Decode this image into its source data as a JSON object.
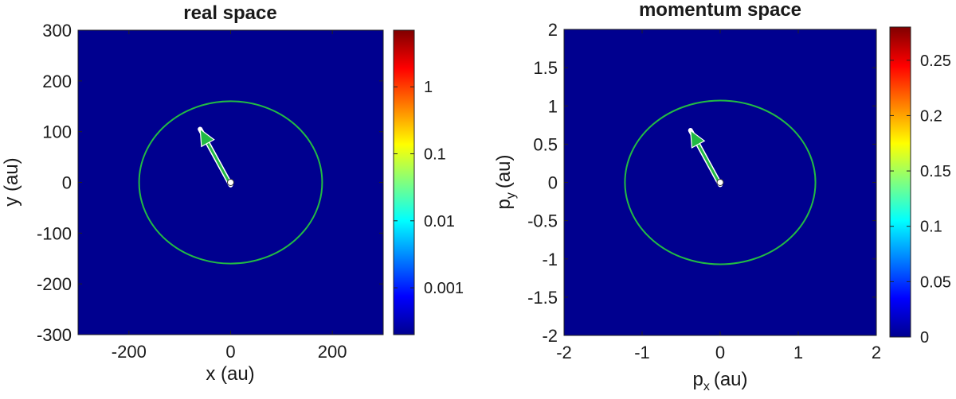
{
  "chart_data": [
    {
      "type": "heatmap",
      "title": "real space",
      "xlabel": "x (au)",
      "ylabel": "y (au)",
      "xlim": [
        -300,
        300
      ],
      "ylim": [
        -300,
        300
      ],
      "xticks": [
        -200,
        0,
        200
      ],
      "xtick_labels": [
        "-200",
        "0",
        "200"
      ],
      "yticks": [
        300,
        200,
        100,
        0,
        -100,
        -200,
        -300
      ],
      "ytick_labels": [
        "300",
        "200",
        "100",
        "0",
        "-100",
        "-200",
        "-300"
      ],
      "field_color": "#00008f",
      "overlay_color": "#22bb44",
      "circle": {
        "cx": 0,
        "cy": 0,
        "rx": 180,
        "ry": 160
      },
      "arrow": {
        "x0": 0,
        "y0": -5,
        "x1": -60,
        "y1": 105
      },
      "colorbar": {
        "scale": "log",
        "range": [
          0.0002,
          7
        ],
        "ticks": [
          1,
          0.1,
          0.01,
          0.001
        ],
        "tick_labels": [
          "1",
          "0.1",
          "0.01",
          "0.001"
        ]
      }
    },
    {
      "type": "heatmap",
      "title": "momentum space",
      "xlabel": "(au)",
      "xlabel_base": "p",
      "xlabel_sub": "x",
      "ylabel": "(au)",
      "ylabel_base": "p",
      "ylabel_sub": "y",
      "xlim": [
        -2,
        2
      ],
      "ylim": [
        -2,
        2
      ],
      "xticks": [
        -2,
        -1,
        0,
        1,
        2
      ],
      "xtick_labels": [
        "-2",
        "-1",
        "0",
        "1",
        "2"
      ],
      "yticks": [
        2,
        1.5,
        1,
        0.5,
        0,
        -0.5,
        -1,
        -1.5,
        -2
      ],
      "ytick_labels": [
        "2",
        "1.5",
        "1",
        "0.5",
        "0",
        "-0.5",
        "-1",
        "-1.5",
        "-2"
      ],
      "field_color": "#00008f",
      "overlay_color": "#22bb44",
      "circle": {
        "cx": 0,
        "cy": 0,
        "rx": 1.22,
        "ry": 1.07
      },
      "arrow": {
        "x0": 0,
        "y0": -0.03,
        "x1": -0.38,
        "y1": 0.68
      },
      "colorbar": {
        "scale": "linear",
        "range": [
          0,
          0.28
        ],
        "ticks": [
          0.25,
          0.2,
          0.15,
          0.1,
          0.05,
          0
        ],
        "tick_labels": [
          "0.25",
          "0.2",
          "0.15",
          "0.1",
          "0.05",
          "0"
        ]
      }
    }
  ]
}
